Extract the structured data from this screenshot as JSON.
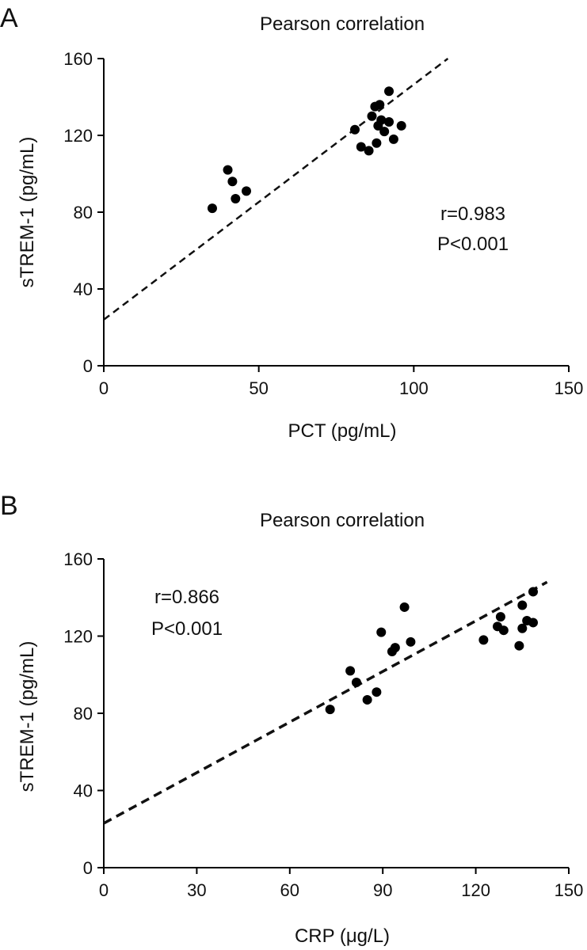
{
  "chart_data": [
    {
      "panel": "A",
      "type": "scatter",
      "title": "Pearson correlation",
      "xlabel": "PCT (pg/mL)",
      "ylabel": "sTREM-1 (pg/mL)",
      "xlim": [
        0,
        150
      ],
      "ylim": [
        0,
        160
      ],
      "xticks": [
        "0",
        "50",
        "100",
        "150"
      ],
      "yticks": [
        "0",
        "40",
        "80",
        "120",
        "160"
      ],
      "r_text": "r=0.983",
      "p_text": "P<0.001",
      "points": [
        {
          "x": 35,
          "y": 82
        },
        {
          "x": 40,
          "y": 102
        },
        {
          "x": 41.5,
          "y": 96
        },
        {
          "x": 42.5,
          "y": 87
        },
        {
          "x": 46,
          "y": 91
        },
        {
          "x": 81,
          "y": 123
        },
        {
          "x": 83,
          "y": 114
        },
        {
          "x": 85.5,
          "y": 112
        },
        {
          "x": 86.5,
          "y": 130
        },
        {
          "x": 87.5,
          "y": 135
        },
        {
          "x": 88,
          "y": 116
        },
        {
          "x": 88.5,
          "y": 125
        },
        {
          "x": 89,
          "y": 136
        },
        {
          "x": 89.5,
          "y": 128
        },
        {
          "x": 90.5,
          "y": 122
        },
        {
          "x": 92,
          "y": 127
        },
        {
          "x": 92,
          "y": 143
        },
        {
          "x": 93.5,
          "y": 118
        },
        {
          "x": 96,
          "y": 125
        }
      ],
      "fit": {
        "x": [
          0,
          111
        ],
        "y": [
          24,
          160
        ]
      }
    },
    {
      "panel": "B",
      "type": "scatter",
      "title": "Pearson correlation",
      "xlabel": "CRP (μg/L)",
      "ylabel": "sTREM-1 (pg/mL)",
      "xlim": [
        0,
        150
      ],
      "ylim": [
        0,
        160
      ],
      "xticks": [
        "0",
        "30",
        "60",
        "90",
        "120",
        "150"
      ],
      "yticks": [
        "0",
        "40",
        "80",
        "120",
        "160"
      ],
      "r_text": "r=0.866",
      "p_text": "P<0.001",
      "points": [
        {
          "x": 73,
          "y": 82
        },
        {
          "x": 79.5,
          "y": 102
        },
        {
          "x": 81.5,
          "y": 96
        },
        {
          "x": 85,
          "y": 87
        },
        {
          "x": 88,
          "y": 91
        },
        {
          "x": 89.5,
          "y": 122
        },
        {
          "x": 93,
          "y": 112
        },
        {
          "x": 94,
          "y": 114
        },
        {
          "x": 97,
          "y": 135
        },
        {
          "x": 99,
          "y": 117
        },
        {
          "x": 122.5,
          "y": 118
        },
        {
          "x": 127,
          "y": 125
        },
        {
          "x": 128,
          "y": 130
        },
        {
          "x": 129,
          "y": 123
        },
        {
          "x": 134,
          "y": 115
        },
        {
          "x": 135,
          "y": 136
        },
        {
          "x": 135,
          "y": 124
        },
        {
          "x": 136.5,
          "y": 128
        },
        {
          "x": 138.5,
          "y": 127
        },
        {
          "x": 138.5,
          "y": 143
        }
      ],
      "fit": {
        "x": [
          0,
          143
        ],
        "y": [
          23,
          148
        ]
      }
    }
  ]
}
